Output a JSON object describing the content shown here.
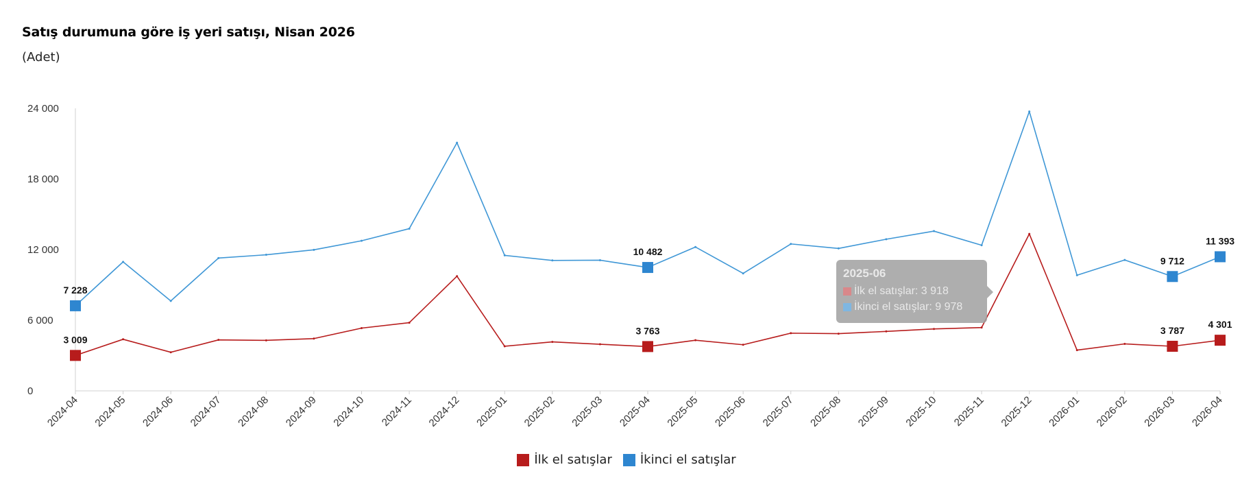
{
  "chart_data": {
    "type": "line",
    "title": "Satış durumuna göre iş yeri satışı, Nisan 2026",
    "subtitle": "(Adet)",
    "ylim": [
      0,
      24000
    ],
    "yticks": [
      "0",
      "6 000",
      "12 000",
      "18 000",
      "24 000"
    ],
    "ytick_values": [
      0,
      6000,
      12000,
      18000,
      24000
    ],
    "grid": false,
    "legend_position": "bottom",
    "categories": [
      "2024-04",
      "2024-05",
      "2024-06",
      "2024-07",
      "2024-08",
      "2024-09",
      "2024-10",
      "2024-11",
      "2024-12",
      "2025-01",
      "2025-02",
      "2025-03",
      "2025-04",
      "2025-05",
      "2025-06",
      "2025-07",
      "2025-08",
      "2025-09",
      "2025-10",
      "2025-11",
      "2025-12",
      "2026-01",
      "2026-02",
      "2026-03",
      "2026-04"
    ],
    "series": [
      {
        "name": "İlk el satışlar",
        "color": "#b71c1c",
        "values": [
          3009,
          4380,
          3280,
          4330,
          4290,
          4440,
          5330,
          5790,
          9740,
          3790,
          4160,
          3960,
          3763,
          4300,
          3918,
          4900,
          4860,
          5050,
          5260,
          5380,
          13330,
          3460,
          3990,
          3787,
          4301
        ],
        "labels": {
          "0": "3 009",
          "12": "3 763",
          "23": "3 787",
          "24": "4 301"
        }
      },
      {
        "name": "İkinci el satışlar",
        "color": "#3f97d6",
        "values": [
          7228,
          10960,
          7640,
          11280,
          11560,
          11980,
          12750,
          13780,
          21080,
          11510,
          11080,
          11100,
          10482,
          12220,
          9978,
          12480,
          12100,
          12880,
          13570,
          12370,
          23730,
          9820,
          11120,
          9712,
          11393
        ],
        "labels": {
          "0": "7 228",
          "12": "10 482",
          "23": "9 712",
          "24": "11 393"
        }
      }
    ],
    "tooltip": {
      "title": "2025-06",
      "rows": [
        "İlk el satışlar: 3 918",
        "İkinci el satışlar: 9 978"
      ]
    }
  }
}
